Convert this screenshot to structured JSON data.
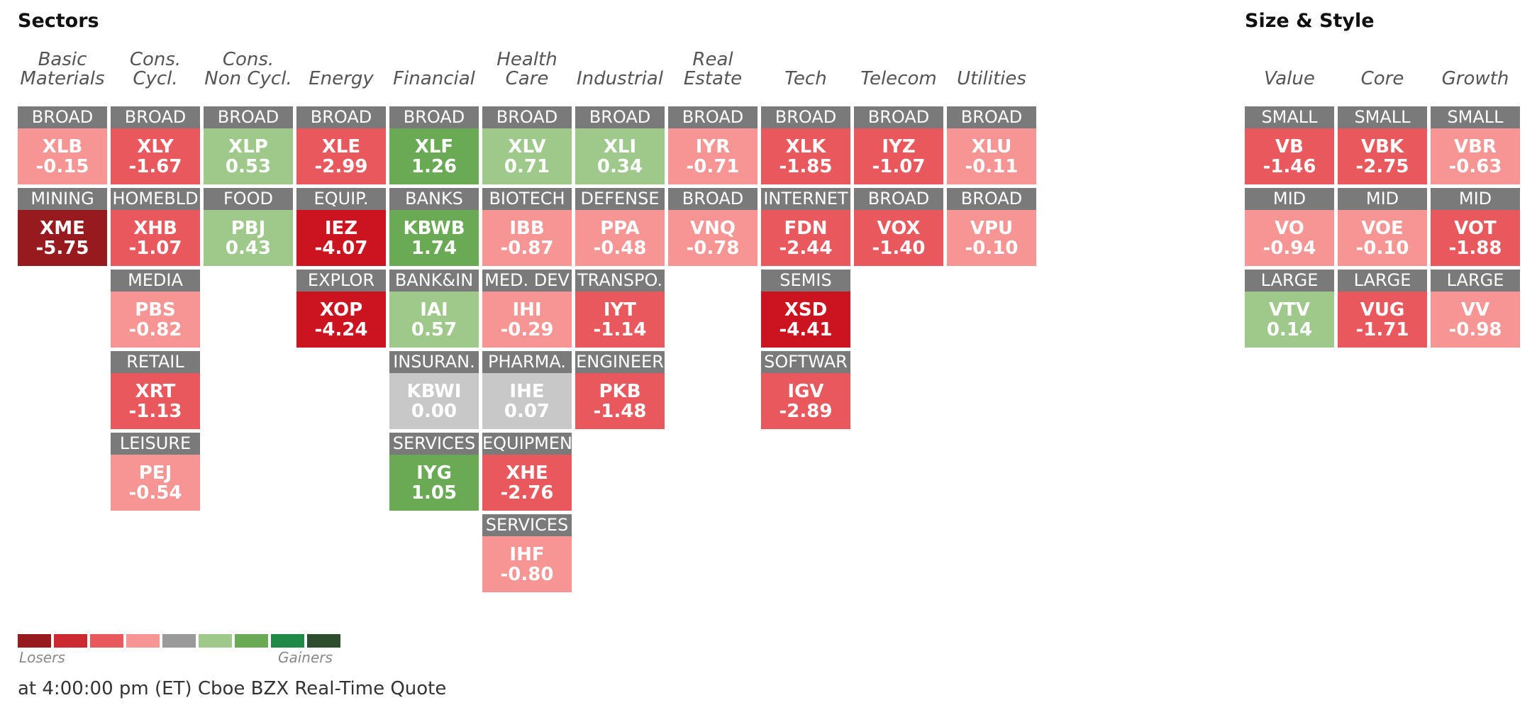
{
  "sectors_title": "Sectors",
  "size_style_title": "Size & Style",
  "sector_columns": [
    {
      "header": [
        "Basic",
        "Materials"
      ],
      "tiles": [
        {
          "label": "BROAD",
          "ticker": "XLB",
          "change": "-0.15",
          "color": "#f79595"
        },
        {
          "label": "MINING",
          "ticker": "XME",
          "change": "-5.75",
          "color": "#961a1e"
        }
      ]
    },
    {
      "header": [
        "Cons.",
        "Cycl."
      ],
      "tiles": [
        {
          "label": "BROAD",
          "ticker": "XLY",
          "change": "-1.67",
          "color": "#e9585c"
        },
        {
          "label": "HOMEBLD",
          "ticker": "XHB",
          "change": "-1.07",
          "color": "#e9585c"
        },
        {
          "label": "MEDIA",
          "ticker": "PBS",
          "change": "-0.82",
          "color": "#f79595"
        },
        {
          "label": "RETAIL",
          "ticker": "XRT",
          "change": "-1.13",
          "color": "#e9585c"
        },
        {
          "label": "LEISURE",
          "ticker": "PEJ",
          "change": "-0.54",
          "color": "#f79595"
        }
      ]
    },
    {
      "header": [
        "Cons.",
        "Non Cycl."
      ],
      "tiles": [
        {
          "label": "BROAD",
          "ticker": "XLP",
          "change": "0.53",
          "color": "#9fc98a"
        },
        {
          "label": "FOOD",
          "ticker": "PBJ",
          "change": "0.43",
          "color": "#9fc98a"
        }
      ]
    },
    {
      "header": [
        "Energy"
      ],
      "tiles": [
        {
          "label": "BROAD",
          "ticker": "XLE",
          "change": "-2.99",
          "color": "#e9585c"
        },
        {
          "label": "EQUIP.",
          "ticker": "IEZ",
          "change": "-4.07",
          "color": "#cc1420"
        },
        {
          "label": "EXPLOR",
          "ticker": "XOP",
          "change": "-4.24",
          "color": "#cc1420"
        }
      ]
    },
    {
      "header": [
        "Financial"
      ],
      "tiles": [
        {
          "label": "BROAD",
          "ticker": "XLF",
          "change": "1.26",
          "color": "#6aaa55"
        },
        {
          "label": "BANKS",
          "ticker": "KBWB",
          "change": "1.74",
          "color": "#6aaa55"
        },
        {
          "label": "BANK&IN",
          "ticker": "IAI",
          "change": "0.57",
          "color": "#9fc98a"
        },
        {
          "label": "INSURAN.",
          "ticker": "KBWI",
          "change": "0.00",
          "color": "#c8c8c8"
        },
        {
          "label": "SERVICES",
          "ticker": "IYG",
          "change": "1.05",
          "color": "#6aaa55"
        }
      ]
    },
    {
      "header": [
        "Health",
        "Care"
      ],
      "tiles": [
        {
          "label": "BROAD",
          "ticker": "XLV",
          "change": "0.71",
          "color": "#9fc98a"
        },
        {
          "label": "BIOTECH",
          "ticker": "IBB",
          "change": "-0.87",
          "color": "#f79595"
        },
        {
          "label": "MED. DEV",
          "ticker": "IHI",
          "change": "-0.29",
          "color": "#f79595"
        },
        {
          "label": "PHARMA.",
          "ticker": "IHE",
          "change": "0.07",
          "color": "#c8c8c8"
        },
        {
          "label": "EQUIPMEN",
          "ticker": "XHE",
          "change": "-2.76",
          "color": "#e9585c"
        },
        {
          "label": "SERVICES",
          "ticker": "IHF",
          "change": "-0.80",
          "color": "#f79595"
        }
      ]
    },
    {
      "header": [
        "Industrial"
      ],
      "tiles": [
        {
          "label": "BROAD",
          "ticker": "XLI",
          "change": "0.34",
          "color": "#9fc98a"
        },
        {
          "label": "DEFENSE",
          "ticker": "PPA",
          "change": "-0.48",
          "color": "#f79595"
        },
        {
          "label": "TRANSPO.",
          "ticker": "IYT",
          "change": "-1.14",
          "color": "#e9585c"
        },
        {
          "label": "ENGINEER",
          "ticker": "PKB",
          "change": "-1.48",
          "color": "#e9585c"
        }
      ]
    },
    {
      "header": [
        "Real",
        "Estate"
      ],
      "tiles": [
        {
          "label": "BROAD",
          "ticker": "IYR",
          "change": "-0.71",
          "color": "#f79595"
        },
        {
          "label": "BROAD",
          "ticker": "VNQ",
          "change": "-0.78",
          "color": "#f79595"
        }
      ]
    },
    {
      "header": [
        "Tech"
      ],
      "tiles": [
        {
          "label": "BROAD",
          "ticker": "XLK",
          "change": "-1.85",
          "color": "#e9585c"
        },
        {
          "label": "INTERNET",
          "ticker": "FDN",
          "change": "-2.44",
          "color": "#e9585c"
        },
        {
          "label": "SEMIS",
          "ticker": "XSD",
          "change": "-4.41",
          "color": "#cc1420"
        },
        {
          "label": "SOFTWAR",
          "ticker": "IGV",
          "change": "-2.89",
          "color": "#e9585c"
        }
      ]
    },
    {
      "header": [
        "Telecom"
      ],
      "tiles": [
        {
          "label": "BROAD",
          "ticker": "IYZ",
          "change": "-1.07",
          "color": "#e9585c"
        },
        {
          "label": "BROAD",
          "ticker": "VOX",
          "change": "-1.40",
          "color": "#e9585c"
        }
      ]
    },
    {
      "header": [
        "Utilities"
      ],
      "tiles": [
        {
          "label": "BROAD",
          "ticker": "XLU",
          "change": "-0.11",
          "color": "#f79595"
        },
        {
          "label": "BROAD",
          "ticker": "VPU",
          "change": "-0.10",
          "color": "#f79595"
        }
      ]
    }
  ],
  "style_columns": [
    {
      "header": [
        "Value"
      ],
      "tiles": [
        {
          "label": "SMALL",
          "ticker": "VB",
          "change": "-1.46",
          "color": "#e9585c"
        },
        {
          "label": "MID",
          "ticker": "VO",
          "change": "-0.94",
          "color": "#f79595"
        },
        {
          "label": "LARGE",
          "ticker": "VTV",
          "change": "0.14",
          "color": "#9fc98a"
        }
      ]
    },
    {
      "header": [
        "Core"
      ],
      "tiles": [
        {
          "label": "SMALL",
          "ticker": "VBK",
          "change": "-2.75",
          "color": "#e9585c"
        },
        {
          "label": "MID",
          "ticker": "VOE",
          "change": "-0.10",
          "color": "#f79595"
        },
        {
          "label": "LARGE",
          "ticker": "VUG",
          "change": "-1.71",
          "color": "#e9585c"
        }
      ]
    },
    {
      "header": [
        "Growth"
      ],
      "tiles": [
        {
          "label": "SMALL",
          "ticker": "VBR",
          "change": "-0.63",
          "color": "#f79595"
        },
        {
          "label": "MID",
          "ticker": "VOT",
          "change": "-1.88",
          "color": "#e9585c"
        },
        {
          "label": "LARGE",
          "ticker": "VV",
          "change": "-0.98",
          "color": "#f79595"
        }
      ]
    }
  ],
  "legend": {
    "swatches": [
      "#961a1e",
      "#cc2a30",
      "#e9585c",
      "#f79595",
      "#9a9a9a",
      "#9fc98a",
      "#6aaa55",
      "#1f8a47",
      "#2d4d2d"
    ],
    "losers_label": "Losers",
    "gainers_label": "Gainers"
  },
  "footer": "at 4:00:00 pm (ET) Cboe BZX Real-Time Quote"
}
